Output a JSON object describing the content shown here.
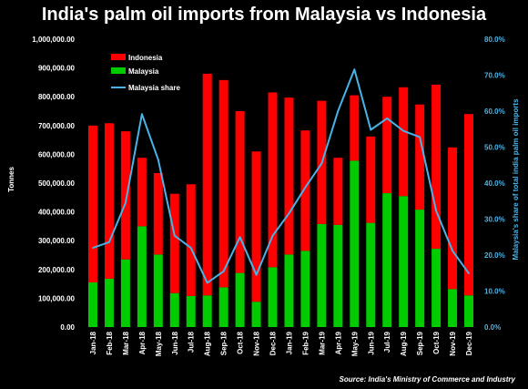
{
  "page": {
    "title": "India's palm oil imports from Malaysia vs Indonesia",
    "source": "Source: India's Ministry of Commerce and Industry"
  },
  "colors": {
    "background": "#000000",
    "indonesia": "#ff0000",
    "malaysia": "#00cc00",
    "share_line": "#4ab3e6",
    "text": "#ffffff"
  },
  "chart_data": {
    "type": "bar",
    "stacked": true,
    "title": "India's palm oil imports from Malaysia vs Indonesia",
    "ylabel": "Tonnes",
    "y2label": "Malaysia's share of total india palm oil imports",
    "ylim": [
      0,
      1000000
    ],
    "y2lim": [
      0,
      0.8
    ],
    "yticks": [
      "0.00",
      "100,000.00",
      "200,000.00",
      "300,000.00",
      "400,000.00",
      "500,000.00",
      "600,000.00",
      "700,000.00",
      "800,000.00",
      "900,000.00",
      "1,000,000.00"
    ],
    "y2ticks": [
      "0.0%",
      "10.0%",
      "20.0%",
      "30.0%",
      "40.0%",
      "50.0%",
      "60.0%",
      "70.0%",
      "80.0%"
    ],
    "categories": [
      "Jan-18",
      "Feb-18",
      "Mar-18",
      "Apr-18",
      "May-18",
      "Jun-18",
      "Jul-18",
      "Aug-18",
      "Sep-18",
      "Oct-18",
      "Nov-18",
      "Dec-18",
      "Jan-19",
      "Feb-19",
      "Mar-19",
      "Apr-19",
      "May-19",
      "Jun-19",
      "Jul-19",
      "Aug-19",
      "Sep-19",
      "Oct-19",
      "Nov-19",
      "Dec-19"
    ],
    "series": [
      {
        "name": "Malaysia",
        "kind": "bar",
        "values": [
          155000,
          168000,
          235000,
          350000,
          252000,
          118000,
          108000,
          110000,
          138000,
          188000,
          88000,
          208000,
          252000,
          265000,
          358000,
          355000,
          578000,
          362000,
          465000,
          455000,
          408000,
          272000,
          132000,
          110000
        ]
      },
      {
        "name": "Indonesia",
        "kind": "bar",
        "values": [
          545000,
          540000,
          445000,
          238000,
          283000,
          345000,
          388000,
          770000,
          720000,
          562000,
          522000,
          607000,
          545000,
          418000,
          428000,
          233000,
          227000,
          300000,
          335000,
          378000,
          365000,
          570000,
          492000,
          630000
        ]
      },
      {
        "name": "Malaysia share",
        "kind": "line",
        "axis": "y2",
        "values": [
          0.22,
          0.236,
          0.345,
          0.592,
          0.465,
          0.254,
          0.22,
          0.123,
          0.155,
          0.25,
          0.145,
          0.254,
          0.316,
          0.388,
          0.455,
          0.601,
          0.716,
          0.548,
          0.58,
          0.545,
          0.528,
          0.323,
          0.212,
          0.149
        ]
      }
    ],
    "legend": "top-left",
    "grid": false
  }
}
